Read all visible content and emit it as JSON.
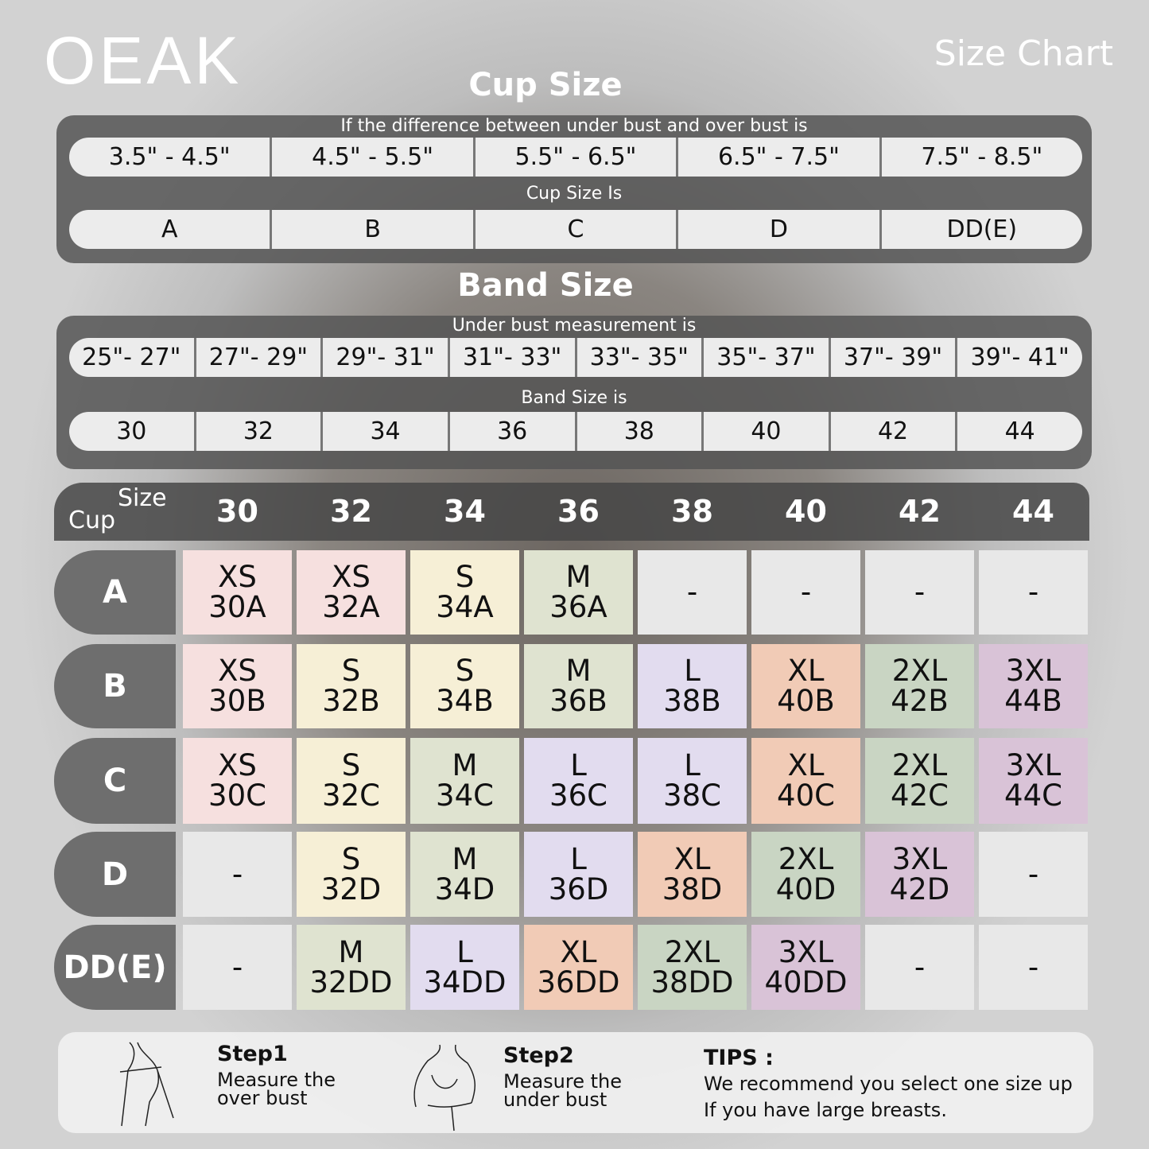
{
  "brand": "OEAK",
  "heading": "Size Chart",
  "cup_section": {
    "title": "Cup Size",
    "difference_label": "If the  difference between under bust and over bust is",
    "ranges": [
      "3.5\" -  4.5\"",
      "4.5\" -  5.5\"",
      "5.5\" -  6.5\"",
      "6.5\" -  7.5\"",
      "7.5\" -  8.5\""
    ],
    "cup_label": "Cup Size Is",
    "cups": [
      "A",
      "B",
      "C",
      "D",
      "DD(E)"
    ]
  },
  "band_section": {
    "title": "Band Size",
    "under_label": "Under bust measurement is",
    "ranges": [
      "25\"- 27\"",
      "27\"- 29\"",
      "29\"- 31\"",
      "31\"- 33\"",
      "33\"- 35\"",
      "35\"- 37\"",
      "37\"- 39\"",
      "39\"- 41\""
    ],
    "band_label": "Band Size is",
    "bands": [
      "30",
      "32",
      "34",
      "36",
      "38",
      "40",
      "42",
      "44"
    ]
  },
  "table": {
    "cup_header": "Cup",
    "size_header": "Size",
    "columns": [
      "30",
      "32",
      "34",
      "36",
      "38",
      "40",
      "42",
      "44"
    ],
    "rows": [
      {
        "cup": "A",
        "cells": [
          [
            "XS",
            "30A"
          ],
          [
            "XS",
            "32A"
          ],
          [
            "S",
            "34A"
          ],
          [
            "M",
            "36A"
          ],
          [
            "-",
            ""
          ],
          [
            "-",
            ""
          ],
          [
            "-",
            ""
          ],
          [
            "-",
            ""
          ]
        ]
      },
      {
        "cup": "B",
        "cells": [
          [
            "XS",
            "30B"
          ],
          [
            "S",
            "32B"
          ],
          [
            "S",
            "34B"
          ],
          [
            "M",
            "36B"
          ],
          [
            "L",
            "38B"
          ],
          [
            "XL",
            "40B"
          ],
          [
            "2XL",
            "42B"
          ],
          [
            "3XL",
            "44B"
          ]
        ]
      },
      {
        "cup": "C",
        "cells": [
          [
            "XS",
            "30C"
          ],
          [
            "S",
            "32C"
          ],
          [
            "M",
            "34C"
          ],
          [
            "L",
            "36C"
          ],
          [
            "L",
            "38C"
          ],
          [
            "XL",
            "40C"
          ],
          [
            "2XL",
            "42C"
          ],
          [
            "3XL",
            "44C"
          ]
        ]
      },
      {
        "cup": "D",
        "cells": [
          [
            "-",
            ""
          ],
          [
            "S",
            "32D"
          ],
          [
            "M",
            "34D"
          ],
          [
            "L",
            "36D"
          ],
          [
            "XL",
            "38D"
          ],
          [
            "2XL",
            "40D"
          ],
          [
            "3XL",
            "42D"
          ],
          [
            "-",
            ""
          ]
        ]
      },
      {
        "cup": "DD(E)",
        "cells": [
          [
            "-",
            ""
          ],
          [
            "M",
            "32DD"
          ],
          [
            "L",
            "34DD"
          ],
          [
            "XL",
            "36DD"
          ],
          [
            "2XL",
            "38DD"
          ],
          [
            "3XL",
            "40DD"
          ],
          [
            "-",
            ""
          ],
          [
            "-",
            ""
          ]
        ]
      }
    ]
  },
  "size_colors": {
    "XS": "#f6e0df",
    "S": "#f6efd6",
    "M": "#dfe3d0",
    "L": "#e2dcef",
    "XL": "#f1cbb6",
    "2XL": "#c9d5c3",
    "3XL": "#d9c3d7",
    "-": "#e8e8e8"
  },
  "steps": [
    {
      "title": "Step1",
      "line1": "Measure the",
      "line2": "over bust"
    },
    {
      "title": "Step2",
      "line1": "Measure the",
      "line2": "under bust"
    }
  ],
  "tips": {
    "title": "TIPS :",
    "line1": "We recommend you select one size up",
    "line2": "If you have large breasts."
  }
}
